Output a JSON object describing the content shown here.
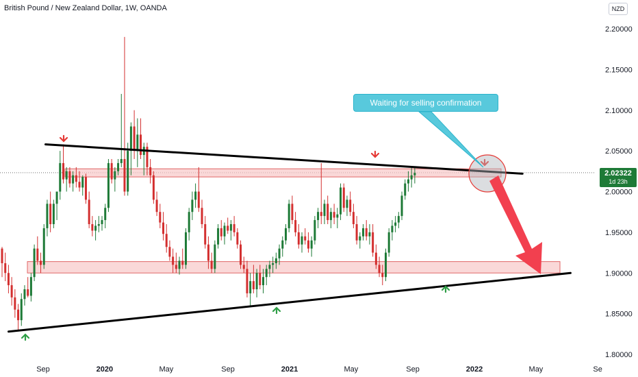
{
  "header": {
    "title": "British Pound / New Zealand Dollar, 1W, OANDA",
    "currency": "NZD"
  },
  "price_badge": {
    "price": "2.02322",
    "countdown": "1d 23h"
  },
  "annotation": {
    "text": "Waiting for selling confirmation"
  },
  "colors": {
    "up": "#1e7a37",
    "down": "#d32f2f",
    "zone_fill": "#f8c8c8",
    "zone_stroke": "#e06666",
    "callout": "#58c9dc",
    "arrow": "#f2404f"
  },
  "chart_data": {
    "type": "candlestick",
    "ylim": [
      1.8,
      2.2
    ],
    "y_ticks": [
      "2.20000",
      "2.15000",
      "2.10000",
      "2.05000",
      "2.00000",
      "1.95000",
      "1.90000",
      "1.85000",
      "1.80000"
    ],
    "x_ticks": [
      "Sep",
      "2020",
      "May",
      "Sep",
      "2021",
      "May",
      "Sep",
      "2022",
      "May",
      "Se"
    ],
    "current_price": 2.02322,
    "zones": [
      {
        "name": "resistance-zone",
        "low": 2.018,
        "high": 2.028
      },
      {
        "name": "support-zone",
        "low": 1.9,
        "high": 1.914
      }
    ],
    "trendlines": [
      {
        "name": "upper-trendline",
        "from": [
          2019.68,
          2.058
        ],
        "to": [
          2022.26,
          2.022
        ]
      },
      {
        "name": "lower-trendline",
        "from": [
          2019.48,
          1.828
        ],
        "to": [
          2022.52,
          1.9
        ]
      }
    ],
    "candles": [
      [
        1.93,
        1.932,
        1.895,
        1.912
      ],
      [
        1.912,
        1.925,
        1.89,
        1.9
      ],
      [
        1.9,
        1.91,
        1.875,
        1.885
      ],
      [
        1.885,
        1.895,
        1.86,
        1.87
      ],
      [
        1.87,
        1.88,
        1.845,
        1.855
      ],
      [
        1.855,
        1.862,
        1.83,
        1.842
      ],
      [
        1.842,
        1.875,
        1.835,
        1.868
      ],
      [
        1.868,
        1.885,
        1.86,
        1.88
      ],
      [
        1.88,
        1.895,
        1.87,
        1.872
      ],
      [
        1.872,
        1.9,
        1.865,
        1.895
      ],
      [
        1.895,
        1.935,
        1.89,
        1.93
      ],
      [
        1.93,
        1.945,
        1.91,
        1.915
      ],
      [
        1.915,
        1.925,
        1.9,
        1.91
      ],
      [
        1.91,
        1.96,
        1.905,
        1.955
      ],
      [
        1.955,
        1.99,
        1.945,
        1.985
      ],
      [
        1.985,
        2.0,
        1.95,
        1.96
      ],
      [
        1.96,
        1.99,
        1.955,
        1.985
      ],
      [
        1.985,
        2.0,
        1.965,
        2.0
      ],
      [
        2.0,
        2.05,
        1.99,
        2.035
      ],
      [
        2.035,
        2.058,
        2.01,
        2.015
      ],
      [
        2.015,
        2.03,
        2.0,
        2.025
      ],
      [
        2.025,
        2.03,
        2.005,
        2.01
      ],
      [
        2.01,
        2.025,
        2.0,
        2.02
      ],
      [
        2.02,
        2.03,
        2.005,
        2.012
      ],
      [
        2.012,
        2.025,
        2.0,
        2.005
      ],
      [
        2.005,
        2.02,
        1.995,
        2.018
      ],
      [
        2.018,
        2.022,
        1.985,
        1.99
      ],
      [
        1.99,
        2.0,
        1.955,
        1.96
      ],
      [
        1.96,
        1.97,
        1.945,
        1.952
      ],
      [
        1.952,
        1.965,
        1.94,
        1.958
      ],
      [
        1.958,
        1.97,
        1.95,
        1.96
      ],
      [
        1.96,
        1.97,
        1.952,
        1.965
      ],
      [
        1.965,
        1.985,
        1.955,
        1.98
      ],
      [
        1.98,
        2.04,
        1.975,
        2.035
      ],
      [
        2.035,
        2.04,
        2.01,
        2.015
      ],
      [
        2.015,
        2.03,
        2.0,
        2.025
      ],
      [
        2.025,
        2.04,
        2.02,
        2.035
      ],
      [
        2.035,
        2.12,
        2.03,
        2.04
      ],
      [
        2.04,
        2.19,
        1.995,
        2.0
      ],
      [
        2.0,
        2.06,
        1.995,
        2.05
      ],
      [
        2.05,
        2.085,
        2.02,
        2.08
      ],
      [
        2.08,
        2.1,
        2.04,
        2.05
      ],
      [
        2.05,
        2.09,
        2.03,
        2.07
      ],
      [
        2.07,
        2.09,
        2.04,
        2.045
      ],
      [
        2.045,
        2.06,
        2.02,
        2.055
      ],
      [
        2.055,
        2.06,
        2.02,
        2.03
      ],
      [
        2.03,
        2.04,
        2.01,
        2.02
      ],
      [
        2.02,
        2.025,
        1.985,
        1.99
      ],
      [
        1.99,
        2.0,
        1.97,
        1.975
      ],
      [
        1.975,
        1.985,
        1.955,
        1.962
      ],
      [
        1.962,
        1.975,
        1.94,
        1.948
      ],
      [
        1.948,
        1.96,
        1.925,
        1.932
      ],
      [
        1.932,
        1.94,
        1.915,
        1.92
      ],
      [
        1.92,
        1.93,
        1.9,
        1.91
      ],
      [
        1.91,
        1.925,
        1.9,
        1.905
      ],
      [
        1.905,
        1.92,
        1.898,
        1.915
      ],
      [
        1.915,
        1.93,
        1.905,
        1.91
      ],
      [
        1.91,
        1.955,
        1.905,
        1.95
      ],
      [
        1.95,
        1.98,
        1.94,
        1.975
      ],
      [
        1.975,
        2.0,
        1.965,
        1.99
      ],
      [
        1.99,
        2.01,
        1.98,
        2.0
      ],
      [
        2.0,
        2.03,
        1.975,
        1.98
      ],
      [
        1.98,
        1.99,
        1.955,
        1.96
      ],
      [
        1.96,
        1.97,
        1.93,
        1.935
      ],
      [
        1.935,
        1.945,
        1.905,
        1.915
      ],
      [
        1.915,
        1.925,
        1.9,
        1.905
      ],
      [
        1.905,
        1.94,
        1.9,
        1.935
      ],
      [
        1.935,
        1.96,
        1.93,
        1.955
      ],
      [
        1.955,
        1.965,
        1.94,
        1.945
      ],
      [
        1.945,
        1.962,
        1.935,
        1.958
      ],
      [
        1.958,
        1.968,
        1.948,
        1.952
      ],
      [
        1.952,
        1.965,
        1.94,
        1.96
      ],
      [
        1.96,
        1.97,
        1.945,
        1.95
      ],
      [
        1.95,
        1.955,
        1.93,
        1.935
      ],
      [
        1.935,
        1.94,
        1.905,
        1.91
      ],
      [
        1.91,
        1.92,
        1.9,
        1.905
      ],
      [
        1.905,
        1.915,
        1.87,
        1.875
      ],
      [
        1.875,
        1.9,
        1.86,
        1.89
      ],
      [
        1.89,
        1.91,
        1.875,
        1.88
      ],
      [
        1.88,
        1.905,
        1.87,
        1.9
      ],
      [
        1.9,
        1.91,
        1.88,
        1.885
      ],
      [
        1.885,
        1.905,
        1.875,
        1.895
      ],
      [
        1.895,
        1.91,
        1.885,
        1.905
      ],
      [
        1.905,
        1.915,
        1.895,
        1.91
      ],
      [
        1.91,
        1.92,
        1.9,
        1.912
      ],
      [
        1.912,
        1.925,
        1.905,
        1.918
      ],
      [
        1.918,
        1.935,
        1.91,
        1.93
      ],
      [
        1.93,
        1.945,
        1.92,
        1.94
      ],
      [
        1.94,
        1.96,
        1.935,
        1.955
      ],
      [
        1.955,
        1.99,
        1.95,
        1.985
      ],
      [
        1.985,
        1.995,
        1.96,
        1.965
      ],
      [
        1.965,
        1.975,
        1.945,
        1.95
      ],
      [
        1.95,
        1.96,
        1.93,
        1.935
      ],
      [
        1.935,
        1.95,
        1.925,
        1.945
      ],
      [
        1.945,
        1.955,
        1.935,
        1.94
      ],
      [
        1.94,
        1.95,
        1.925,
        1.93
      ],
      [
        1.93,
        1.945,
        1.92,
        1.94
      ],
      [
        1.94,
        1.97,
        1.935,
        1.965
      ],
      [
        1.965,
        1.98,
        1.955,
        1.975
      ],
      [
        1.975,
        2.035,
        1.96,
        1.97
      ],
      [
        1.97,
        1.99,
        1.96,
        1.985
      ],
      [
        1.985,
        1.995,
        1.96,
        1.965
      ],
      [
        1.965,
        1.98,
        1.955,
        1.975
      ],
      [
        1.975,
        1.985,
        1.96,
        1.968
      ],
      [
        1.968,
        1.98,
        1.955,
        1.972
      ],
      [
        1.972,
        2.01,
        1.965,
        2.005
      ],
      [
        2.005,
        2.01,
        1.975,
        1.98
      ],
      [
        1.98,
        1.995,
        1.97,
        1.99
      ],
      [
        1.99,
        2.0,
        1.97,
        1.975
      ],
      [
        1.975,
        1.985,
        1.955,
        1.96
      ],
      [
        1.96,
        1.97,
        1.935,
        1.94
      ],
      [
        1.94,
        1.95,
        1.93,
        1.945
      ],
      [
        1.945,
        1.96,
        1.94,
        1.955
      ],
      [
        1.955,
        1.965,
        1.94,
        1.945
      ],
      [
        1.945,
        1.96,
        1.935,
        1.95
      ],
      [
        1.95,
        1.96,
        1.92,
        1.925
      ],
      [
        1.925,
        1.935,
        1.905,
        1.91
      ],
      [
        1.91,
        1.92,
        1.895,
        1.9
      ],
      [
        1.9,
        1.91,
        1.885,
        1.895
      ],
      [
        1.895,
        1.93,
        1.89,
        1.925
      ],
      [
        1.925,
        1.955,
        1.92,
        1.95
      ],
      [
        1.95,
        1.965,
        1.94,
        1.958
      ],
      [
        1.958,
        1.97,
        1.95,
        1.962
      ],
      [
        1.962,
        1.975,
        1.955,
        1.97
      ],
      [
        1.97,
        2.0,
        1.965,
        1.995
      ],
      [
        1.995,
        2.015,
        1.99,
        2.01
      ],
      [
        2.01,
        2.025,
        2.0,
        2.015
      ],
      [
        2.015,
        2.03,
        2.005,
        2.02
      ],
      [
        2.02,
        2.03,
        2.01,
        2.023
      ]
    ]
  }
}
